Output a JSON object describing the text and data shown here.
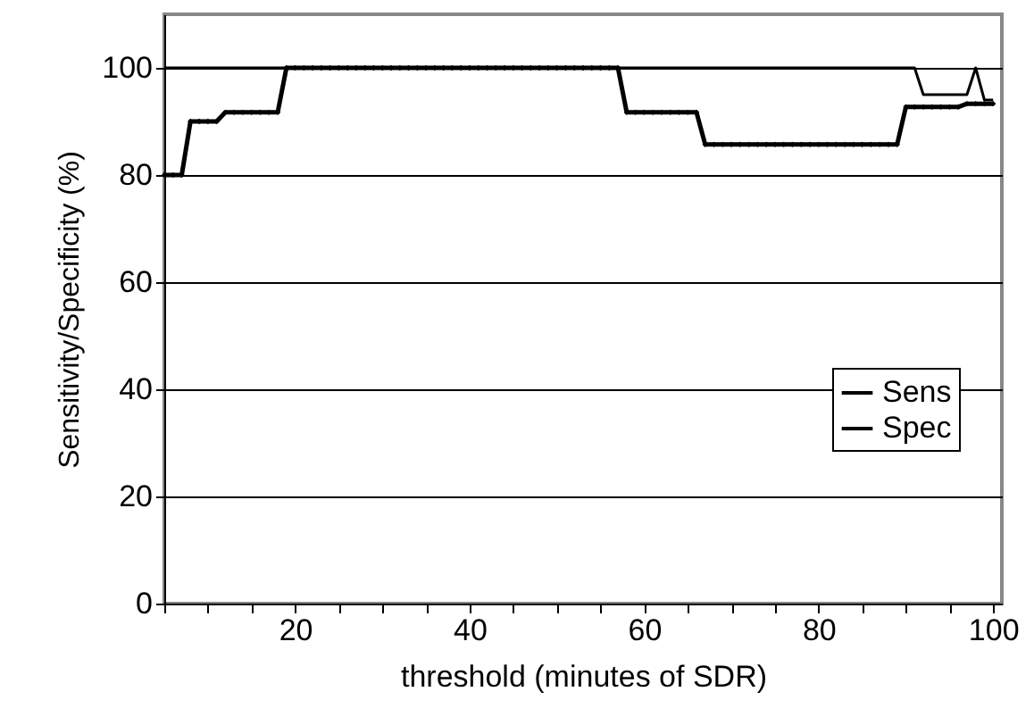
{
  "chart_data": {
    "type": "line",
    "xlabel": "threshold (minutes of SDR)",
    "ylabel": "Sensitivity/Specificity (%)",
    "xlim": [
      5,
      101
    ],
    "ylim": [
      0,
      110
    ],
    "xticks": [
      {
        "value": 5,
        "label": null
      },
      {
        "value": 10,
        "label": null
      },
      {
        "value": 15,
        "label": null
      },
      20,
      {
        "value": 25,
        "label": null
      },
      {
        "value": 30,
        "label": null
      },
      {
        "value": 35,
        "label": null
      },
      40,
      {
        "value": 45,
        "label": null
      },
      {
        "value": 50,
        "label": null
      },
      {
        "value": 55,
        "label": null
      },
      60,
      {
        "value": 65,
        "label": null
      },
      {
        "value": 70,
        "label": null
      },
      {
        "value": 75,
        "label": null
      },
      80,
      {
        "value": 85,
        "label": null
      },
      {
        "value": 90,
        "label": null
      },
      {
        "value": 95,
        "label": null
      },
      100
    ],
    "yticks": [
      0,
      20,
      40,
      60,
      80,
      100
    ],
    "grid": "y",
    "legend": "right",
    "line_style": "solid",
    "series": [
      {
        "name": "Sens",
        "color": "#000000",
        "marker": "none",
        "x": [
          5,
          91,
          92,
          97,
          98,
          99,
          100
        ],
        "values": [
          100,
          100,
          95,
          95,
          100,
          94,
          94
        ]
      },
      {
        "name": "Spec",
        "color": "#000000",
        "marker": "diamond",
        "x": [
          5,
          6,
          7,
          8,
          9,
          10,
          11,
          12,
          13,
          14,
          15,
          16,
          17,
          18,
          19,
          20,
          21,
          22,
          23,
          24,
          25,
          26,
          27,
          28,
          29,
          30,
          31,
          32,
          33,
          34,
          35,
          36,
          37,
          38,
          39,
          40,
          41,
          42,
          43,
          44,
          45,
          46,
          47,
          48,
          49,
          50,
          51,
          52,
          53,
          54,
          55,
          56,
          57,
          58,
          59,
          60,
          61,
          62,
          63,
          64,
          65,
          66,
          67,
          68,
          69,
          70,
          71,
          72,
          73,
          74,
          75,
          76,
          77,
          78,
          79,
          80,
          81,
          82,
          83,
          84,
          85,
          86,
          87,
          88,
          89,
          90,
          91,
          92,
          93,
          94,
          95,
          96,
          97,
          98,
          99,
          100
        ],
        "values": [
          80,
          80,
          80,
          90,
          90,
          90,
          90,
          91.7,
          91.7,
          91.7,
          91.7,
          91.7,
          91.7,
          91.7,
          100,
          100,
          100,
          100,
          100,
          100,
          100,
          100,
          100,
          100,
          100,
          100,
          100,
          100,
          100,
          100,
          100,
          100,
          100,
          100,
          100,
          100,
          100,
          100,
          100,
          100,
          100,
          100,
          100,
          100,
          100,
          100,
          100,
          100,
          100,
          100,
          100,
          100,
          100,
          91.7,
          91.7,
          91.7,
          91.7,
          91.7,
          91.7,
          91.7,
          91.7,
          91.7,
          85.7,
          85.7,
          85.7,
          85.7,
          85.7,
          85.7,
          85.7,
          85.7,
          85.7,
          85.7,
          85.7,
          85.7,
          85.7,
          85.7,
          85.7,
          85.7,
          85.7,
          85.7,
          85.7,
          85.7,
          85.7,
          85.7,
          85.7,
          92.7,
          92.7,
          92.7,
          92.7,
          92.7,
          92.7,
          92.7,
          93.3,
          93.3,
          93.3,
          93.3
        ]
      }
    ]
  }
}
